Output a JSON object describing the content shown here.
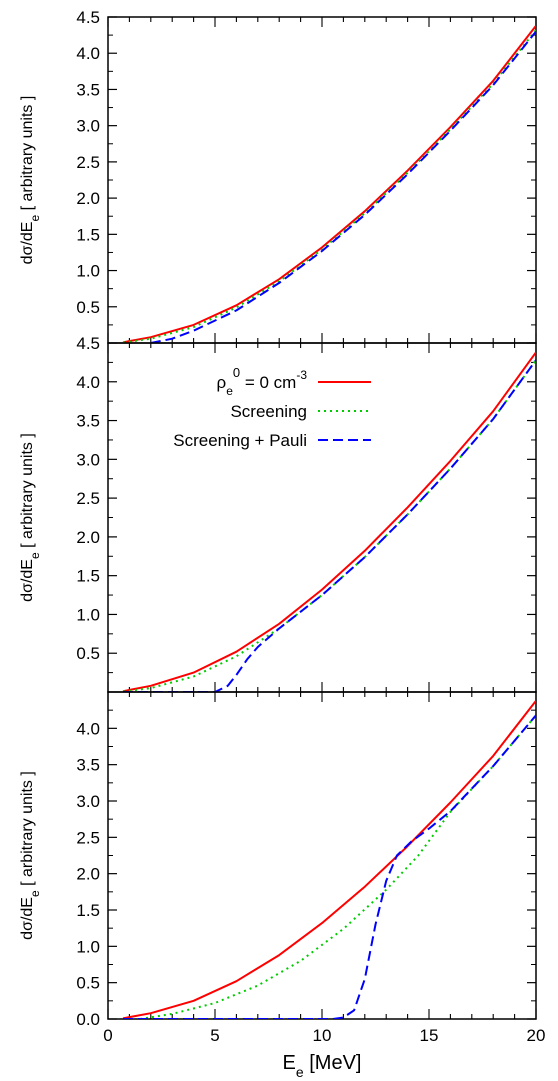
{
  "chart_data": [
    {
      "type": "line",
      "panel": "top",
      "xlim": [
        0,
        20
      ],
      "ylim": [
        0,
        4.5
      ],
      "y_ticks": [
        "4.5",
        "4.0",
        "3.5",
        "3.0",
        "2.5",
        "2.0",
        "1.5",
        "1.0",
        "0.5"
      ],
      "ylabel_main": "dσ/dE",
      "ylabel_sub": "e",
      "ylabel_rest": " [ arbitrary units ]",
      "series": [
        {
          "color": "#ff0000",
          "dash": "solid",
          "x": [
            0.7,
            2,
            4,
            6,
            8,
            10,
            12,
            14,
            16,
            18,
            20
          ],
          "y": [
            0.01,
            0.08,
            0.25,
            0.52,
            0.88,
            1.32,
            1.82,
            2.38,
            2.98,
            3.62,
            4.38
          ]
        },
        {
          "color": "#00cc00",
          "dash": "dotted",
          "x": [
            0.7,
            2,
            4,
            6,
            8,
            10,
            12,
            14,
            16,
            18,
            20
          ],
          "y": [
            0.005,
            0.06,
            0.22,
            0.49,
            0.85,
            1.29,
            1.79,
            2.35,
            2.95,
            3.58,
            4.32
          ]
        },
        {
          "color": "#0000ff",
          "dash": "dashed",
          "x": [
            2,
            3,
            4,
            6,
            8,
            10,
            12,
            14,
            16,
            18,
            20
          ],
          "y": [
            0.0,
            0.06,
            0.17,
            0.45,
            0.83,
            1.27,
            1.77,
            2.33,
            2.93,
            3.56,
            4.3
          ]
        }
      ]
    },
    {
      "type": "line",
      "panel": "middle",
      "xlim": [
        0,
        20
      ],
      "ylim": [
        0,
        4.5
      ],
      "y_ticks": [
        "4.5",
        "4.0",
        "3.5",
        "3.0",
        "2.5",
        "2.0",
        "1.5",
        "1.0",
        "0.5"
      ],
      "ylabel_main": "dσ/dE",
      "ylabel_sub": "e",
      "ylabel_rest": " [ arbitrary units ]",
      "legend": {
        "placement": "top-right",
        "entries": [
          {
            "label_main": "ρ",
            "label_sub": "e",
            "label_sup": "0",
            "label_mid": " = 0 cm",
            "label_sup2": "-3",
            "color": "#ff0000",
            "dash": "solid"
          },
          {
            "label": "Screening",
            "color": "#00cc00",
            "dash": "dotted"
          },
          {
            "label": "Screening + Pauli",
            "color": "#0000ff",
            "dash": "dashed"
          }
        ]
      },
      "series": [
        {
          "color": "#ff0000",
          "dash": "solid",
          "x": [
            0.7,
            2,
            4,
            6,
            8,
            10,
            12,
            14,
            16,
            18,
            20
          ],
          "y": [
            0.01,
            0.08,
            0.25,
            0.52,
            0.88,
            1.32,
            1.82,
            2.38,
            2.98,
            3.62,
            4.38
          ]
        },
        {
          "color": "#00cc00",
          "dash": "dotted",
          "x": [
            0.7,
            2,
            4,
            6,
            8,
            10,
            12,
            14,
            16,
            18,
            20
          ],
          "y": [
            0.005,
            0.05,
            0.2,
            0.46,
            0.82,
            1.25,
            1.74,
            2.29,
            2.88,
            3.52,
            4.28
          ]
        },
        {
          "color": "#0000ff",
          "dash": "dashed",
          "x": [
            0.7,
            5.0,
            5.6,
            6.0,
            6.5,
            7.0,
            8,
            10,
            12,
            14,
            16,
            18,
            20
          ],
          "y": [
            0.0,
            0.0,
            0.08,
            0.22,
            0.42,
            0.58,
            0.82,
            1.25,
            1.74,
            2.29,
            2.88,
            3.52,
            4.28
          ]
        }
      ]
    },
    {
      "type": "line",
      "panel": "bottom",
      "xlim": [
        0,
        20
      ],
      "ylim": [
        0,
        4.5
      ],
      "y_ticks": [
        "4.0",
        "3.5",
        "3.0",
        "2.5",
        "2.0",
        "1.5",
        "1.0",
        "0.5",
        "0.0"
      ],
      "x_ticks": [
        "0",
        "5",
        "10",
        "15",
        "20"
      ],
      "xlabel_main": "E",
      "xlabel_sub": "e",
      "xlabel_rest": " [MeV]",
      "ylabel_main": "dσ/dE",
      "ylabel_sub": "e",
      "ylabel_rest": " [ arbitrary units ]",
      "series": [
        {
          "color": "#ff0000",
          "dash": "solid",
          "x": [
            0.7,
            2,
            4,
            6,
            8,
            10,
            12,
            14,
            16,
            18,
            20
          ],
          "y": [
            0.01,
            0.08,
            0.25,
            0.52,
            0.88,
            1.32,
            1.82,
            2.38,
            2.98,
            3.62,
            4.38
          ]
        },
        {
          "color": "#00cc00",
          "dash": "dotted",
          "x": [
            1.5,
            3,
            5,
            7,
            9,
            11,
            13,
            14.5,
            16,
            18,
            20
          ],
          "y": [
            0.0,
            0.07,
            0.22,
            0.46,
            0.8,
            1.24,
            1.78,
            2.25,
            2.85,
            3.48,
            4.18
          ]
        },
        {
          "color": "#0000ff",
          "dash": "dashed",
          "x": [
            0.7,
            10.5,
            11.0,
            11.5,
            12.0,
            12.5,
            13.0,
            13.5,
            14.2,
            15,
            16,
            18,
            20
          ],
          "y": [
            0.0,
            0.0,
            0.02,
            0.12,
            0.55,
            1.3,
            1.9,
            2.25,
            2.45,
            2.62,
            2.86,
            3.48,
            4.18
          ]
        }
      ]
    }
  ]
}
